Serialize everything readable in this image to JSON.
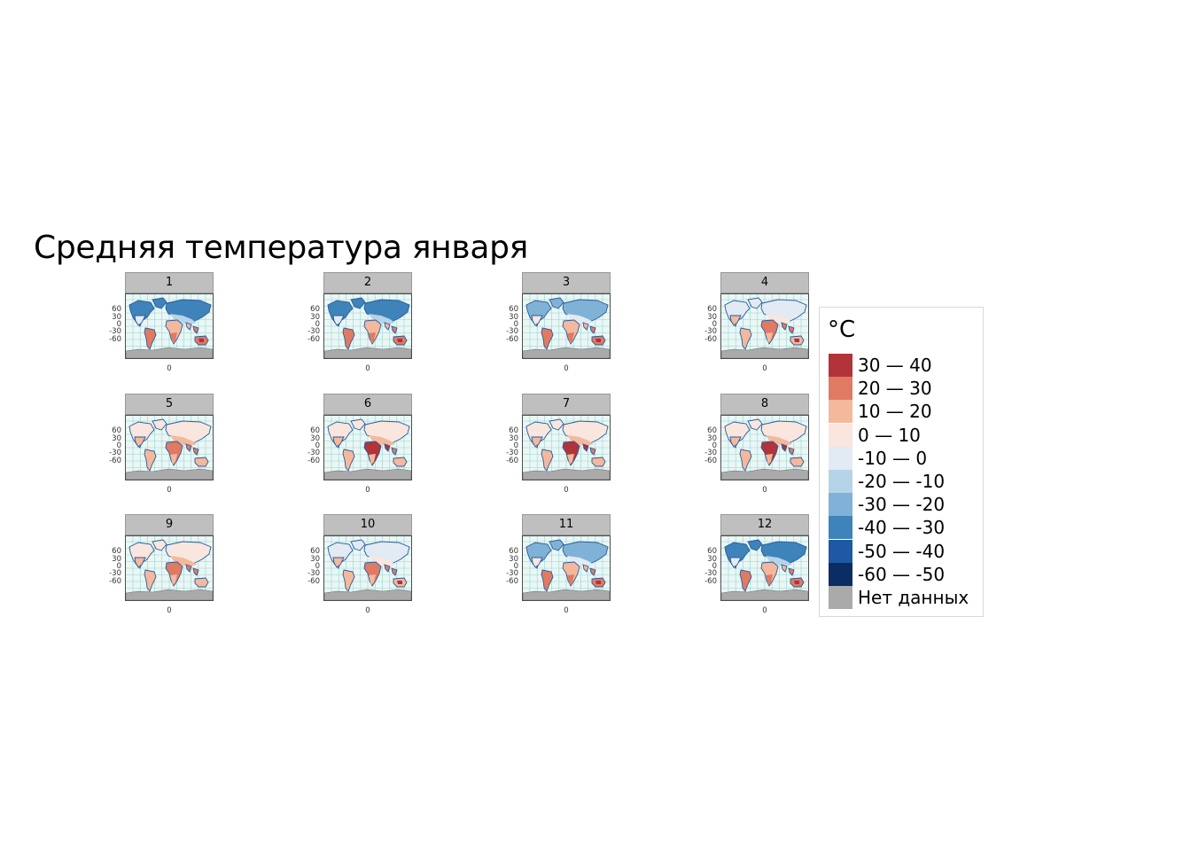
{
  "title": "Средняя температура января",
  "panels": [
    {
      "label": "1",
      "cold": 0.85,
      "hot": 0.55,
      "xtick": "0"
    },
    {
      "label": "2",
      "cold": 0.8,
      "hot": 0.6,
      "xtick": "0"
    },
    {
      "label": "3",
      "cold": 0.65,
      "hot": 0.7,
      "xtick": "0"
    },
    {
      "label": "4",
      "cold": 0.45,
      "hot": 0.8,
      "xtick": "0"
    },
    {
      "label": "5",
      "cold": 0.2,
      "hot": 0.9,
      "xtick": "0"
    },
    {
      "label": "6",
      "cold": 0.1,
      "hot": 0.95,
      "xtick": "0"
    },
    {
      "label": "7",
      "cold": 0.05,
      "hot": 1.0,
      "xtick": "0"
    },
    {
      "label": "8",
      "cold": 0.1,
      "hot": 0.95,
      "xtick": "0"
    },
    {
      "label": "9",
      "cold": 0.2,
      "hot": 0.9,
      "xtick": "0"
    },
    {
      "label": "10",
      "cold": 0.45,
      "hot": 0.75,
      "xtick": "0"
    },
    {
      "label": "11",
      "cold": 0.7,
      "hot": 0.65,
      "xtick": "0"
    },
    {
      "label": "12",
      "cold": 0.85,
      "hot": 0.55,
      "xtick": "0"
    }
  ],
  "y_ticks": [
    "60",
    "30",
    "0",
    "-30",
    "-60"
  ],
  "legend": {
    "title": "°C",
    "items": [
      {
        "label": "30 — 40",
        "color": "#b2333a"
      },
      {
        "label": "20 — 30",
        "color": "#e07a62"
      },
      {
        "label": "10 — 20",
        "color": "#f4b89c"
      },
      {
        "label": "0 — 10",
        "color": "#f8e6df"
      },
      {
        "label": "-10 — 0",
        "color": "#e2eaf3"
      },
      {
        "label": "-20 — -10",
        "color": "#b6d4e8"
      },
      {
        "label": "-30 — -20",
        "color": "#7fb2d6"
      },
      {
        "label": "-40 — -30",
        "color": "#3f83bb"
      },
      {
        "label": "-50 — -40",
        "color": "#1f59a3"
      },
      {
        "label": "-60 — -50",
        "color": "#0b2d63"
      },
      {
        "label": "Нет данных",
        "color": "#aaaaaa"
      }
    ]
  }
}
